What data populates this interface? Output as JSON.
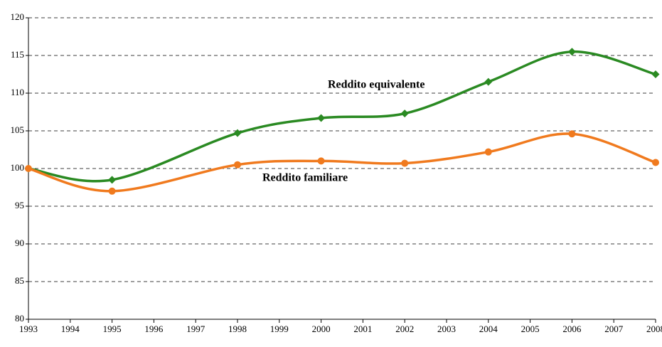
{
  "chart_data": {
    "type": "line",
    "x": [
      1993,
      1995,
      1998,
      2000,
      2002,
      2004,
      2006,
      2008
    ],
    "series": [
      {
        "name": "Reddito equivalente",
        "color": "#2a8a22",
        "marker": "diamond",
        "values": [
          100,
          98.5,
          104.7,
          106.7,
          107.3,
          111.5,
          115.5,
          112.5
        ]
      },
      {
        "name": "Reddito familiare",
        "color": "#f07a1e",
        "marker": "circle",
        "values": [
          100,
          97,
          100.5,
          101,
          100.7,
          102.2,
          104.6,
          100.8
        ]
      }
    ],
    "xlim": [
      1993,
      2008
    ],
    "xticks": [
      1993,
      1994,
      1995,
      1996,
      1997,
      1998,
      1999,
      2000,
      2001,
      2002,
      2003,
      2004,
      2005,
      2006,
      2007,
      2008
    ],
    "ylim": [
      80,
      120
    ],
    "yticks": [
      80,
      85,
      90,
      95,
      100,
      105,
      110,
      115,
      120
    ],
    "grid": true
  }
}
